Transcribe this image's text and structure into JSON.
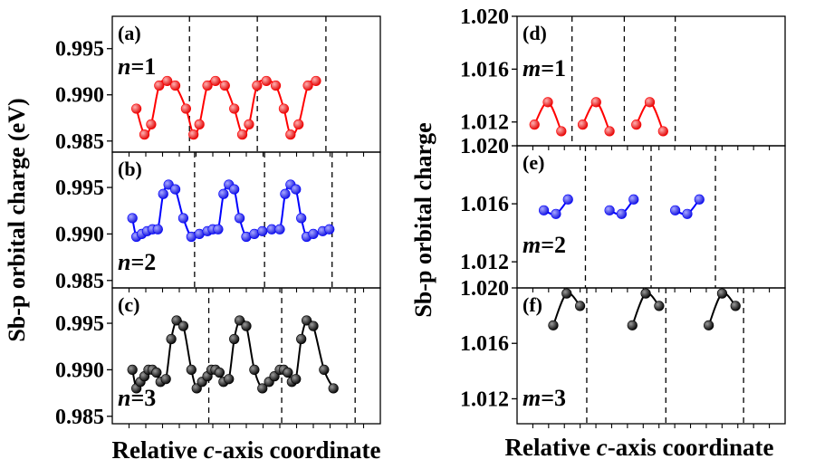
{
  "figure": {
    "left_ylabel": "Sb-p orbital charge (eV)",
    "right_ylabel": "Sb-p orbital charge",
    "left_xlabel_pre": "Relative ",
    "left_xlabel_italic": "c",
    "left_xlabel_post": "-axis coordinate",
    "right_xlabel_pre": "Relative ",
    "right_xlabel_italic": "c",
    "right_xlabel_post": "-axis coordinate"
  },
  "chart_data": [
    {
      "type": "line",
      "panel": "(a)",
      "var": "n",
      "eq": "=1",
      "color": "#ff0000",
      "ylim": [
        0.9838,
        0.9985
      ],
      "yticks": [
        0.995,
        0.99,
        0.985
      ],
      "ytick_labels": [
        "0.995",
        "0.990",
        "0.985"
      ],
      "xlim": [
        0,
        1
      ],
      "dividers": [
        0.288,
        0.541,
        0.797
      ],
      "series": [
        {
          "name": "n=1",
          "x": [
            0.09,
            0.12,
            0.145,
            0.175,
            0.205,
            0.235,
            0.275,
            0.303,
            0.325,
            0.355,
            0.385,
            0.42,
            0.455,
            0.485,
            0.51,
            0.54,
            0.575,
            0.61,
            0.64,
            0.665,
            0.695,
            0.73,
            0.76
          ],
          "values": [
            0.9885,
            0.9857,
            0.9868,
            0.991,
            0.9915,
            0.991,
            0.9885,
            0.9857,
            0.9868,
            0.991,
            0.9915,
            0.991,
            0.9885,
            0.9857,
            0.9868,
            0.991,
            0.9915,
            0.991,
            0.9885,
            0.9857,
            0.9868,
            0.991,
            0.9915
          ]
        }
      ]
    },
    {
      "type": "line",
      "panel": "(b)",
      "var": "n",
      "eq": "=2",
      "color": "#0000ff",
      "ylim": [
        0.9842,
        0.9988
      ],
      "yticks": [
        0.995,
        0.99,
        0.985
      ],
      "ytick_labels": [
        "0.995",
        "0.990",
        "0.985"
      ],
      "xlim": [
        0,
        1
      ],
      "dividers": [
        0.307,
        0.568,
        0.82
      ],
      "series": [
        {
          "name": "n=2",
          "x": [
            0.075,
            0.09,
            0.11,
            0.13,
            0.15,
            0.17,
            0.19,
            0.21,
            0.235,
            0.265,
            0.295,
            0.325,
            0.355,
            0.375,
            0.395,
            0.415,
            0.435,
            0.455,
            0.475,
            0.5,
            0.53,
            0.56,
            0.595,
            0.625,
            0.645,
            0.665,
            0.685,
            0.705,
            0.725,
            0.75,
            0.785,
            0.81
          ],
          "values": [
            0.9917,
            0.9897,
            0.99,
            0.9903,
            0.9905,
            0.9905,
            0.9943,
            0.9953,
            0.9948,
            0.9917,
            0.9897,
            0.99,
            0.9903,
            0.9905,
            0.9905,
            0.9943,
            0.9953,
            0.9948,
            0.9917,
            0.9897,
            0.99,
            0.9903,
            0.9905,
            0.9905,
            0.9943,
            0.9953,
            0.9948,
            0.9917,
            0.9897,
            0.99,
            0.9903,
            0.9905
          ]
        }
      ]
    },
    {
      "type": "line",
      "panel": "(c)",
      "var": "n",
      "eq": "=3",
      "color": "#000000",
      "ylim": [
        0.9842,
        0.9988
      ],
      "yticks": [
        0.995,
        0.99,
        0.985
      ],
      "ytick_labels": [
        "0.995",
        "0.990",
        "0.985"
      ],
      "xlim": [
        0,
        1
      ],
      "dividers": [
        0.36,
        0.632,
        0.906
      ],
      "series": [
        {
          "name": "n=3",
          "x": [
            0.075,
            0.09,
            0.105,
            0.12,
            0.135,
            0.15,
            0.165,
            0.18,
            0.2,
            0.22,
            0.24,
            0.265,
            0.295,
            0.315,
            0.335,
            0.355,
            0.37,
            0.385,
            0.4,
            0.415,
            0.435,
            0.455,
            0.475,
            0.5,
            0.53,
            0.56,
            0.585,
            0.605,
            0.625,
            0.64,
            0.655,
            0.67,
            0.685,
            0.705,
            0.725,
            0.75,
            0.79,
            0.825
          ],
          "values": [
            0.99,
            0.988,
            0.9887,
            0.9893,
            0.99,
            0.99,
            0.9897,
            0.9887,
            0.989,
            0.9933,
            0.9953,
            0.9947,
            0.99,
            0.988,
            0.9887,
            0.9893,
            0.99,
            0.99,
            0.9897,
            0.9887,
            0.989,
            0.9933,
            0.9953,
            0.9947,
            0.99,
            0.988,
            0.9887,
            0.9893,
            0.99,
            0.99,
            0.9897,
            0.9887,
            0.989,
            0.9933,
            0.9953,
            0.9947,
            0.99,
            0.988
          ]
        }
      ]
    },
    {
      "type": "line",
      "panel": "(d)",
      "var": "m",
      "eq": "=1",
      "color": "#ff0000",
      "ylim": [
        1.0102,
        1.02
      ],
      "yticks": [
        1.02,
        1.016,
        1.012
      ],
      "ytick_labels": [
        "1.020",
        "1.016",
        "1.012"
      ],
      "xlim": [
        0,
        1
      ],
      "dividers": [
        0.205,
        0.4,
        0.59
      ],
      "series": [
        {
          "name": "m=1",
          "x": [
            0.065,
            0.115,
            0.165,
            0.245,
            0.295,
            0.345,
            0.445,
            0.495,
            0.545
          ],
          "values": [
            1.0118,
            1.0135,
            1.0113,
            1.0118,
            1.0135,
            1.0113,
            1.0118,
            1.0135,
            1.0113
          ]
        }
      ]
    },
    {
      "type": "line",
      "panel": "(e)",
      "var": "m",
      "eq": "=2",
      "color": "#0000ff",
      "ylim": [
        1.0102,
        1.02
      ],
      "yticks": [
        1.02,
        1.016,
        1.012
      ],
      "ytick_labels": [
        "1.020",
        "1.016",
        "1.012"
      ],
      "xlim": [
        0,
        1
      ],
      "dividers": [
        0.255,
        0.5,
        0.74
      ],
      "series": [
        {
          "name": "m=2",
          "x": [
            0.1,
            0.145,
            0.19,
            0.345,
            0.39,
            0.435,
            0.59,
            0.635,
            0.68
          ],
          "values": [
            1.01555,
            1.0153,
            1.0163,
            1.01555,
            1.0153,
            1.0163,
            1.01555,
            1.0153,
            1.0163
          ]
        }
      ]
    },
    {
      "type": "line",
      "panel": "(f)",
      "var": "m",
      "eq": "=3",
      "color": "#000000",
      "ylim": [
        1.0102,
        1.02
      ],
      "yticks": [
        1.02,
        1.016,
        1.012
      ],
      "ytick_labels": [
        "1.020",
        "1.016",
        "1.012"
      ],
      "xlim": [
        0,
        1
      ],
      "dividers": [
        0.26,
        0.555,
        0.845
      ],
      "series": [
        {
          "name": "m=3",
          "x": [
            0.135,
            0.185,
            0.235,
            0.43,
            0.48,
            0.53,
            0.715,
            0.765,
            0.815
          ],
          "values": [
            1.0173,
            1.0196,
            1.0187,
            1.0173,
            1.0196,
            1.0187,
            1.0173,
            1.0196,
            1.0187
          ]
        }
      ]
    }
  ]
}
